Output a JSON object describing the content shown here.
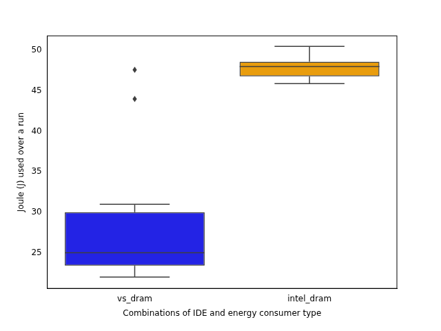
{
  "chart_data": {
    "type": "box",
    "x_label": "Combinations of IDE and energy consumer type",
    "y_label": "Joule (J) used over a run",
    "categories": [
      "vs_dram",
      "intel_dram"
    ],
    "boxes": [
      {
        "whisker_low": 22,
        "q1": 23.4,
        "median": 25,
        "q3": 30,
        "whisker_high": 31,
        "outliers": [
          44,
          47.6
        ]
      },
      {
        "whisker_low": 45.9,
        "q1": 46.8,
        "median": 48,
        "q3": 48.6,
        "whisker_high": 50.5,
        "outliers": []
      }
    ],
    "colors": [
      "#2323e5",
      "#e99d0e"
    ],
    "ylim": [
      20.6,
      51.8
    ],
    "yticks": [
      25,
      30,
      35,
      40,
      45,
      50
    ],
    "grid": false
  }
}
